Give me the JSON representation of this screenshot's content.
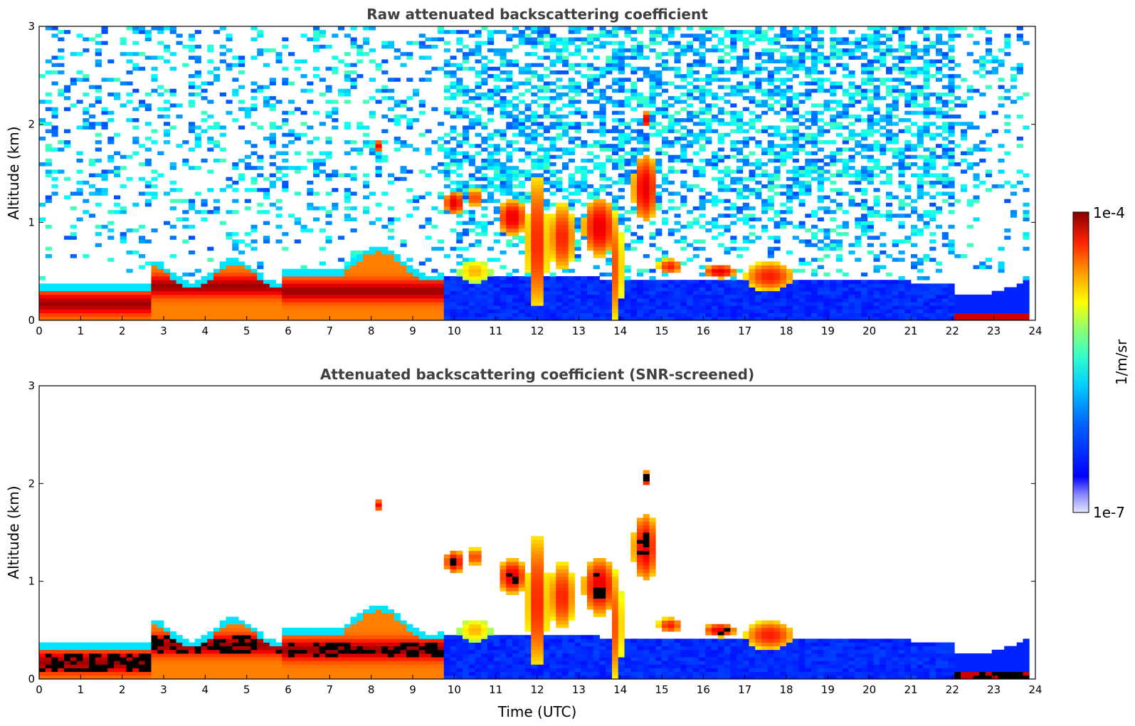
{
  "chart_data": [
    {
      "type": "heatmap",
      "title": "Raw attenuated backscattering coefficient",
      "xlabel": "",
      "ylabel": "Altitude (km)",
      "xlim": [
        0,
        24
      ],
      "ylim": [
        0,
        3
      ],
      "xticks": [
        "0",
        "1",
        "2",
        "3",
        "4",
        "5",
        "6",
        "7",
        "8",
        "9",
        "10",
        "11",
        "12",
        "13",
        "14",
        "15",
        "16",
        "17",
        "18",
        "19",
        "20",
        "21",
        "22",
        "23",
        "24"
      ],
      "yticks": [
        "0",
        "1",
        "2",
        "3"
      ],
      "screened": false,
      "layers": [
        {
          "feature": "boundary layer aerosol",
          "t": [
            0,
            2.75
          ],
          "z": [
            0.05,
            0.32
          ],
          "peak_z": 0.17,
          "intensity": "high"
        },
        {
          "feature": "boundary layer aerosol",
          "t": [
            2.75,
            5.9
          ],
          "z": [
            0.05,
            0.6
          ],
          "peak_z": 0.35,
          "intensity": "high"
        },
        {
          "feature": "boundary layer aerosol",
          "t": [
            5.9,
            7.2
          ],
          "z": [
            0.05,
            0.55
          ],
          "peak_z": 0.3,
          "intensity": "high"
        },
        {
          "feature": "boundary layer aerosol",
          "t": [
            7.2,
            9.8
          ],
          "z": [
            0.05,
            0.8
          ],
          "peak_z": 0.3,
          "intensity": "high"
        },
        {
          "feature": "cloud",
          "t": [
            8.1,
            8.3
          ],
          "z": [
            1.7,
            1.85
          ],
          "intensity": "high"
        },
        {
          "feature": "cloud",
          "t": [
            9.85,
            10.6
          ],
          "z": [
            1.0,
            1.4
          ],
          "intensity": "high"
        },
        {
          "feature": "cloud",
          "t": [
            10.8,
            14.4
          ],
          "z": [
            0.0,
            1.45
          ],
          "peak_z": 0.95,
          "intensity": "high"
        },
        {
          "feature": "cloud",
          "t": [
            14.1,
            15.2
          ],
          "z": [
            1.0,
            1.85
          ],
          "intensity": "high"
        },
        {
          "feature": "cloud",
          "t": [
            14.55,
            14.7
          ],
          "z": [
            1.95,
            2.15
          ],
          "intensity": "high"
        },
        {
          "feature": "cloud",
          "t": [
            14.8,
            15.5
          ],
          "z": [
            0.45,
            0.65
          ],
          "intensity": "high"
        },
        {
          "feature": "cloud",
          "t": [
            15.95,
            16.8
          ],
          "z": [
            0.4,
            0.6
          ],
          "intensity": "high"
        },
        {
          "feature": "cloud",
          "t": [
            16.8,
            18.7
          ],
          "z": [
            0.25,
            0.7
          ],
          "intensity": "high"
        },
        {
          "feature": "surface layer",
          "t": [
            22.0,
            23.8
          ],
          "z": [
            0.0,
            0.1
          ],
          "intensity": "high"
        }
      ]
    },
    {
      "type": "heatmap",
      "title": "Attenuated backscattering coefficient (SNR-screened)",
      "xlabel": "Time (UTC)",
      "ylabel": "Altitude (km)",
      "xlim": [
        0,
        24
      ],
      "ylim": [
        0,
        3
      ],
      "xticks": [
        "0",
        "1",
        "2",
        "3",
        "4",
        "5",
        "6",
        "7",
        "8",
        "9",
        "10",
        "11",
        "12",
        "13",
        "14",
        "15",
        "16",
        "17",
        "18",
        "19",
        "20",
        "21",
        "22",
        "23",
        "24"
      ],
      "yticks": [
        "0",
        "1",
        "2",
        "3"
      ],
      "screened": true
    }
  ],
  "colorbar": {
    "max_label": "1e-4",
    "min_label": "1e-7",
    "label": "1/m/sr",
    "scale": "log",
    "colormap": "jet"
  }
}
